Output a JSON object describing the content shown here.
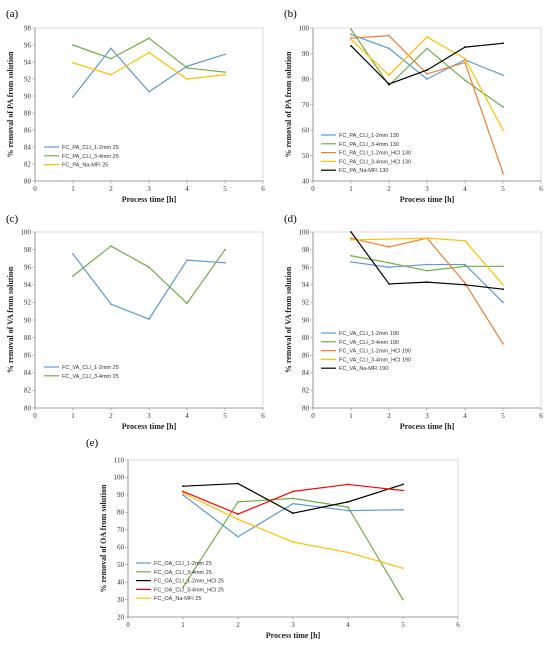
{
  "figure": {
    "title": ""
  },
  "chart_data": [
    {
      "panel": "(a)",
      "type": "line",
      "xlabel": "Process time [h]",
      "ylabel": "% removal of PA from solution",
      "xlim": [
        0,
        6
      ],
      "ylim": [
        80,
        98
      ],
      "xticks": [
        0,
        1,
        2,
        3,
        4,
        5,
        6
      ],
      "yticks": [
        80,
        82,
        84,
        86,
        88,
        90,
        92,
        94,
        96,
        98
      ],
      "grid": false,
      "legend_placement": "bottom-left",
      "x": [
        1,
        2,
        3,
        4,
        5
      ],
      "series": [
        {
          "name": "FC_PA_CLI_1-2mm 25",
          "color": "#5b9bd5",
          "values": [
            89.9,
            95.6,
            90.5,
            93.5,
            94.9
          ]
        },
        {
          "name": "FC_PA_CLI_3-4mm 25",
          "color": "#70ad47",
          "values": [
            96.0,
            94.4,
            96.8,
            93.3,
            92.8
          ]
        },
        {
          "name": "FC_PA_Na-MFI 25",
          "color": "#ffc000",
          "values": [
            93.9,
            92.5,
            95.1,
            92.0,
            92.5
          ]
        }
      ]
    },
    {
      "panel": "(b)",
      "type": "line",
      "xlabel": "Process time [h]",
      "ylabel": "% removal of PA from solution",
      "xlim": [
        0,
        6
      ],
      "ylim": [
        40,
        100
      ],
      "xticks": [
        0,
        1,
        2,
        3,
        4,
        5,
        6
      ],
      "yticks": [
        40,
        50,
        60,
        70,
        80,
        90,
        100
      ],
      "grid": false,
      "legend_placement": "bottom-left",
      "x": [
        1,
        2,
        3,
        4,
        5
      ],
      "series": [
        {
          "name": "FC_PA_CLI_1-2mm 130",
          "color": "#5b9bd5",
          "values": [
            97.5,
            92.0,
            80.0,
            87.5,
            81.5
          ]
        },
        {
          "name": "FC_PA_CLI_3-4mm 130",
          "color": "#70ad47",
          "values": [
            99.5,
            77.5,
            92.0,
            79.5,
            69.0
          ]
        },
        {
          "name": "FC_PA_CLI_1-2mm_HCl 130",
          "color": "#ed7d31",
          "values": [
            96.0,
            97.0,
            82.0,
            86.5,
            43.0
          ]
        },
        {
          "name": "FC_PA_CLI_3-4mm_HCl 130",
          "color": "#ffc000",
          "values": [
            95.5,
            81.5,
            96.5,
            88.0,
            60.0
          ]
        },
        {
          "name": "FC_PA_Na-MFI 130",
          "color": "#000000",
          "values": [
            93.0,
            78.0,
            83.5,
            92.5,
            94.0
          ]
        }
      ]
    },
    {
      "panel": "(c)",
      "type": "line",
      "xlabel": "Process time [h]",
      "ylabel": "% removal of VA from solution",
      "xlim": [
        0,
        6
      ],
      "ylim": [
        80,
        100
      ],
      "xticks": [
        0,
        1,
        2,
        3,
        4,
        5,
        6
      ],
      "yticks": [
        80,
        82,
        84,
        86,
        88,
        90,
        92,
        94,
        96,
        98,
        100
      ],
      "grid": false,
      "legend_placement": "bottom-left",
      "x": [
        1,
        2,
        3,
        4,
        5
      ],
      "series": [
        {
          "name": "FC_VA_CLI_1-2mm 25",
          "color": "#5b9bd5",
          "values": [
            97.5,
            91.8,
            90.1,
            96.8,
            96.5
          ]
        },
        {
          "name": "FC_VA_CLI_3-4mm 25",
          "color": "#70ad47",
          "values": [
            95.0,
            98.4,
            96.0,
            91.9,
            98.0
          ]
        }
      ]
    },
    {
      "panel": "(d)",
      "type": "line",
      "xlabel": "Process time [h]",
      "ylabel": "% removal of VA from solution",
      "xlim": [
        0,
        6
      ],
      "ylim": [
        80,
        100
      ],
      "xticks": [
        0,
        1,
        2,
        3,
        4,
        5,
        6
      ],
      "yticks": [
        80,
        82,
        84,
        86,
        88,
        90,
        92,
        94,
        96,
        98,
        100
      ],
      "grid": false,
      "legend_placement": "bottom-left",
      "x": [
        1,
        2,
        3,
        4,
        5
      ],
      "series": [
        {
          "name": "FC_VA_CLI_1-2mm 190",
          "color": "#5b9bd5",
          "values": [
            96.6,
            96.0,
            96.3,
            96.3,
            92.0
          ]
        },
        {
          "name": "FC_VA_CLI_3-4mm 190",
          "color": "#70ad47",
          "values": [
            97.3,
            96.5,
            95.6,
            96.1,
            96.1
          ]
        },
        {
          "name": "FC_VA_CLI_1-2mm_HCl 190",
          "color": "#ed7d31",
          "values": [
            99.3,
            98.3,
            99.3,
            94.2,
            87.3
          ]
        },
        {
          "name": "FC_VA_CLI_3-4mm_HCl 190",
          "color": "#ffc000",
          "values": [
            99.1,
            99.2,
            99.3,
            99.0,
            94.0
          ]
        },
        {
          "name": "FC_VA_Na-MFI 190",
          "color": "#000000",
          "values": [
            100.0,
            94.1,
            94.3,
            94.0,
            93.5
          ]
        }
      ]
    },
    {
      "panel": "(e)",
      "type": "line",
      "xlabel": "Process time [h]",
      "ylabel": "% removal of OA from solution",
      "xlim": [
        0,
        6
      ],
      "ylim": [
        20,
        110
      ],
      "xticks": [
        0,
        1,
        2,
        3,
        4,
        5,
        6
      ],
      "yticks": [
        20,
        30,
        40,
        50,
        60,
        70,
        80,
        90,
        100,
        110
      ],
      "grid": false,
      "legend_placement": "bottom-left",
      "x": [
        1,
        2,
        3,
        4,
        5
      ],
      "series": [
        {
          "name": "FC_OA_CLI_1-2mm 25",
          "color": "#5b9bd5",
          "values": [
            90.0,
            66.0,
            85.0,
            81.0,
            81.5
          ]
        },
        {
          "name": "FC_OA_CLI_3-4mm 25",
          "color": "#70ad47",
          "values": [
            37.0,
            86.0,
            88.0,
            83.0,
            30.0
          ]
        },
        {
          "name": "FC_OA_CLI_1-2mm_HCl 25",
          "color": "#000000",
          "values": [
            95.0,
            96.5,
            79.5,
            86.0,
            96.0
          ]
        },
        {
          "name": "FC_OA_CLI_3-4mm_HCl 25",
          "color": "#ff0000",
          "values": [
            92.0,
            79.0,
            92.0,
            96.0,
            92.5
          ]
        },
        {
          "name": "FC_OA_Na-MFI 25",
          "color": "#ffc000",
          "values": [
            91.0,
            76.0,
            63.0,
            57.0,
            48.0
          ]
        }
      ]
    }
  ]
}
